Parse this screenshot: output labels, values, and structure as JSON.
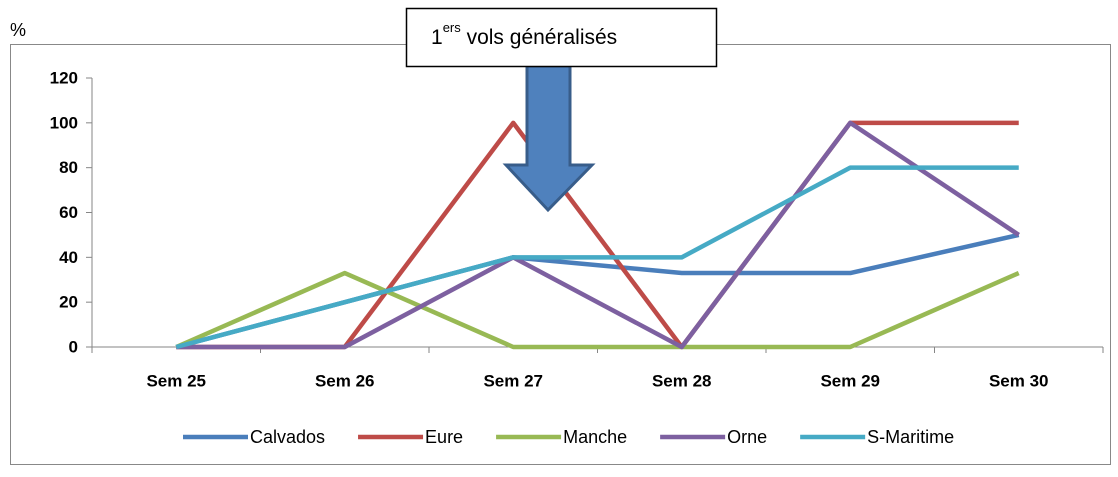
{
  "chart_data": {
    "type": "line",
    "y_label": "%",
    "annotation_parts": [
      "1",
      "ers",
      " vols généralisés"
    ],
    "categories": [
      "Sem 25",
      "Sem 26",
      "Sem 27",
      "Sem 28",
      "Sem 29",
      "Sem 30"
    ],
    "series": [
      {
        "name": "Calvados",
        "color": "#4a7ebb",
        "values": [
          0,
          20,
          40,
          33,
          33,
          50
        ]
      },
      {
        "name": "Eure",
        "color": "#be4b48",
        "values": [
          0,
          0,
          100,
          0,
          100,
          100
        ]
      },
      {
        "name": "Manche",
        "color": "#98b954",
        "values": [
          0,
          33,
          0,
          0,
          0,
          33
        ]
      },
      {
        "name": "Orne",
        "color": "#7d60a0",
        "values": [
          0,
          0,
          40,
          0,
          100,
          50
        ]
      },
      {
        "name": "S-Maritime",
        "color": "#46aac5",
        "values": [
          0,
          20,
          40,
          40,
          80,
          80
        ]
      }
    ],
    "ylim": [
      0,
      120
    ],
    "yticks": [
      0,
      20,
      40,
      60,
      80,
      100,
      120
    ],
    "grid": false,
    "legend": "bottom"
  }
}
